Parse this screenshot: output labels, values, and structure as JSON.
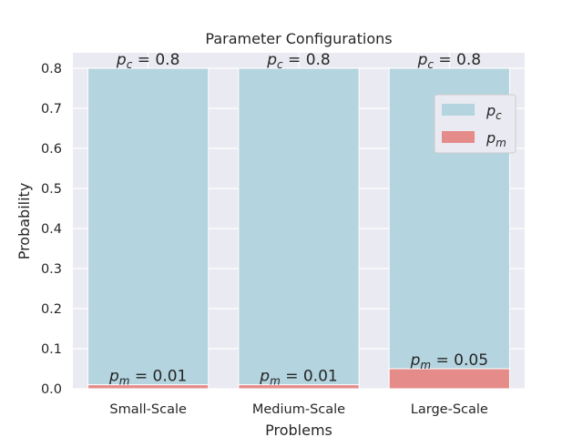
{
  "chart_data": {
    "type": "bar",
    "title": "Parameter Configurations",
    "xlabel": "Problems",
    "ylabel": "Probability",
    "categories": [
      "Small-Scale",
      "Medium-Scale",
      "Large-Scale"
    ],
    "series": [
      {
        "name": "p_c",
        "values": [
          0.8,
          0.8,
          0.8
        ],
        "color": "#b4d4df",
        "label_symbol": "p",
        "label_sub": "c",
        "label_texts": [
          "0.8",
          "0.8",
          "0.8"
        ]
      },
      {
        "name": "p_m",
        "values": [
          0.01,
          0.01,
          0.05
        ],
        "color": "#e58c8a",
        "label_symbol": "p",
        "label_sub": "m",
        "label_texts": [
          "0.01",
          "0.01",
          "0.05"
        ]
      }
    ],
    "ylim": [
      0,
      0.8
    ],
    "yticks": [
      "0.0",
      "0.1",
      "0.2",
      "0.3",
      "0.4",
      "0.5",
      "0.6",
      "0.7",
      "0.8"
    ],
    "grid": true,
    "legend_position": "upper-right",
    "colors": {
      "plot_background": "#eaeaf2",
      "grid": "#ffffff",
      "text": "#262626"
    }
  }
}
